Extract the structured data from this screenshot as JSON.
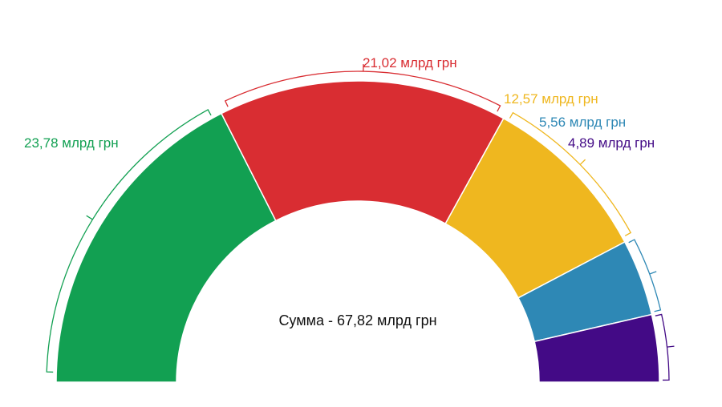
{
  "chart_data": {
    "type": "pie",
    "variant": "semi-donut",
    "total_label": "Сумма - 67,82 млрд грн",
    "segments": [
      {
        "value": 23.78,
        "label": "23,78 млрд грн",
        "color": "#12a052"
      },
      {
        "value": 21.02,
        "label": "21,02 млрд грн",
        "color": "#d92d32"
      },
      {
        "value": 12.57,
        "label": "12,57 млрд грн",
        "color": "#efb71f"
      },
      {
        "value": 5.56,
        "label": "5,56 млрд грн",
        "color": "#2e88b5"
      },
      {
        "value": 4.89,
        "label": "4,89 млрд грн",
        "color": "#430a86"
      }
    ]
  }
}
